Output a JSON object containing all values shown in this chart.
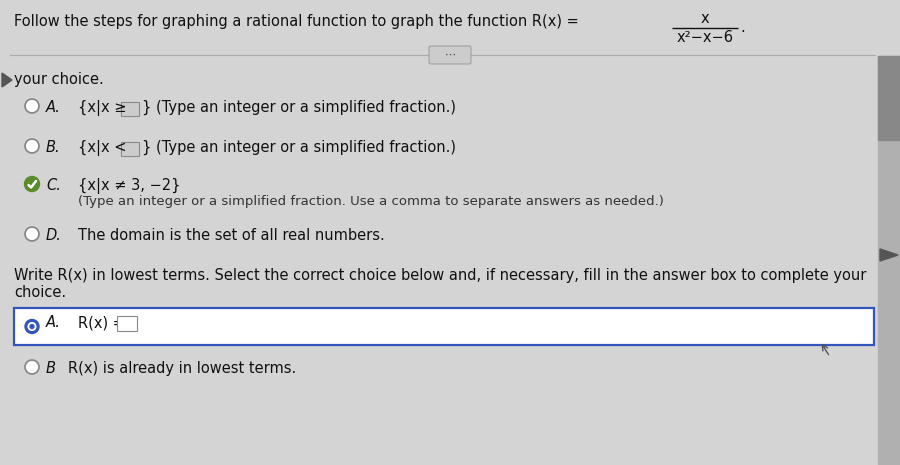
{
  "bg_color": "#d4d4d4",
  "title_text": "Follow the steps for graphing a rational function to graph the function R(x) =",
  "fraction_numerator": "x",
  "fraction_denominator": "x²−x−6",
  "your_choice_text": "your choice.",
  "options": [
    {
      "label": "A.",
      "text": "{x|x ≥ ",
      "box": true,
      "suffix": "} (Type an integer or a simplified fraction.)",
      "selected": false
    },
    {
      "label": "B.",
      "text": "{x|x < ",
      "box": true,
      "suffix": "} (Type an integer or a simplified fraction.)",
      "selected": false
    },
    {
      "label": "C.",
      "text": "{x|x ≠ 3, −2}",
      "box": false,
      "suffix": "",
      "selected": true,
      "subtext": "(Type an integer or a simplified fraction. Use a comma to separate answers as needed.)"
    },
    {
      "label": "D.",
      "text": "The domain is the set of all real numbers.",
      "box": false,
      "suffix": "",
      "selected": false
    }
  ],
  "write_line1": "Write R(x) in lowest terms. Select the correct choice below and, if necessary, fill in the answer box to complete your",
  "write_line2": "choice.",
  "lower_options": [
    {
      "label": "A.",
      "text": "R(x) =",
      "box": true,
      "selected": true
    },
    {
      "label": "B",
      "text": "R(x) is already in lowest terms.",
      "box": false,
      "selected": false
    }
  ],
  "sep_color": "#aaaaaa",
  "scrollbar_color": "#b0b0b0",
  "scrollbar_thumb": "#888888",
  "box_border_color": "#3355bb",
  "radio_selected_color": "#3355bb",
  "radio_unselected_color": "#888888",
  "check_selected_color": "#5a8a2a",
  "text_color": "#111111",
  "subtext_color": "#333333",
  "answer_box_color": "#cccccc",
  "fs_title": 10.5,
  "fs_body": 10.5,
  "fs_small": 9.5
}
